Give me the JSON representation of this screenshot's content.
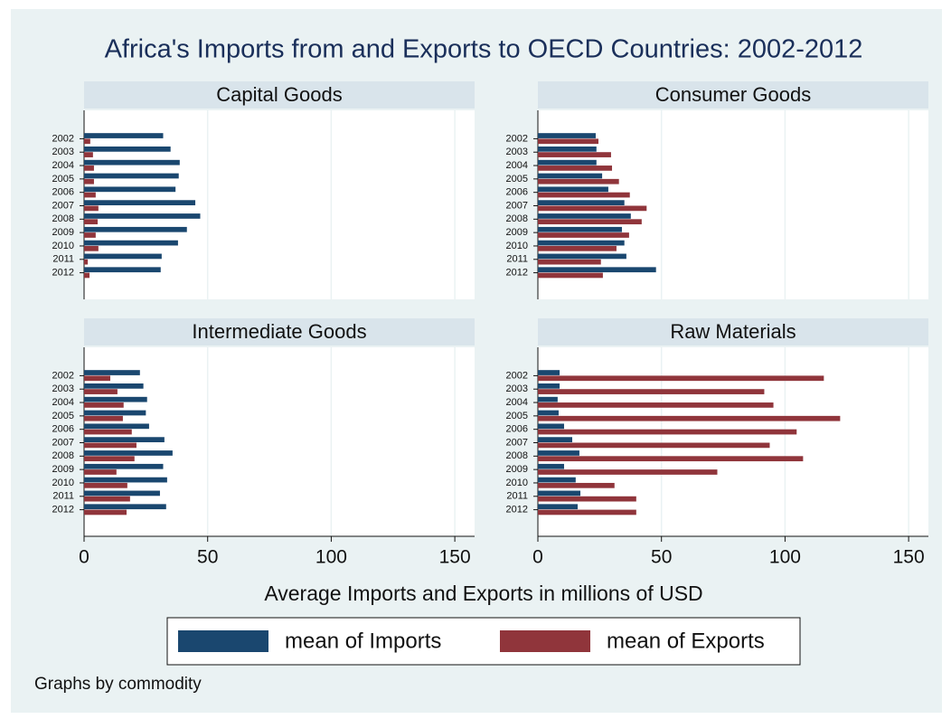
{
  "title": "Africa's Imports from and Exports to OECD Countries: 2002-2012",
  "xlabel": "Average Imports and Exports in millions of USD",
  "note": "Graphs by commodity",
  "chart_data": [
    {
      "type": "bar",
      "orientation": "horizontal",
      "title": "Capital Goods",
      "categories": [
        "2002",
        "2003",
        "2004",
        "2005",
        "2006",
        "2007",
        "2008",
        "2009",
        "2010",
        "2011",
        "2012"
      ],
      "series": [
        {
          "name": "mean of Imports",
          "color": "#1a476f",
          "values": [
            32,
            35,
            38.7,
            38.3,
            37,
            45,
            47,
            41.6,
            38,
            31.4,
            31
          ]
        },
        {
          "name": "mean of Exports",
          "color": "#90353b",
          "values": [
            2.5,
            3.6,
            4,
            4,
            4.7,
            5.8,
            5.5,
            4.7,
            5.8,
            1.5,
            2.2
          ]
        }
      ],
      "xlim": [
        0,
        158
      ],
      "xticks": [
        0,
        50,
        100,
        150
      ],
      "grid": true
    },
    {
      "type": "bar",
      "orientation": "horizontal",
      "title": "Consumer Goods",
      "categories": [
        "2002",
        "2003",
        "2004",
        "2005",
        "2006",
        "2007",
        "2008",
        "2009",
        "2010",
        "2011",
        "2012"
      ],
      "series": [
        {
          "name": "mean of Imports",
          "color": "#1a476f",
          "values": [
            23.4,
            23.7,
            23.7,
            26,
            28.5,
            35,
            37.6,
            34,
            35,
            35.8,
            47.8
          ]
        },
        {
          "name": "mean of Exports",
          "color": "#90353b",
          "values": [
            24.5,
            29.6,
            30,
            32.8,
            37.2,
            44,
            42,
            36.9,
            31.8,
            25.5,
            26.3
          ]
        }
      ],
      "xlim": [
        0,
        158
      ],
      "xticks": [
        0,
        50,
        100,
        150
      ],
      "grid": true
    },
    {
      "type": "bar",
      "orientation": "horizontal",
      "title": "Intermediate Goods",
      "categories": [
        "2002",
        "2003",
        "2004",
        "2005",
        "2006",
        "2007",
        "2008",
        "2009",
        "2010",
        "2011",
        "2012"
      ],
      "series": [
        {
          "name": "mean of Imports",
          "color": "#1a476f",
          "values": [
            22.6,
            24,
            25.5,
            25,
            26.3,
            32.5,
            35.8,
            32,
            33.6,
            30.7,
            33.2
          ]
        },
        {
          "name": "mean of Exports",
          "color": "#90353b",
          "values": [
            10.6,
            13.5,
            16,
            15.7,
            19.3,
            21.2,
            20.4,
            13.1,
            17.5,
            18.6,
            17.2
          ]
        }
      ],
      "xlim": [
        0,
        158
      ],
      "xticks": [
        0,
        50,
        100,
        150
      ],
      "grid": true
    },
    {
      "type": "bar",
      "orientation": "horizontal",
      "title": "Raw Materials",
      "categories": [
        "2002",
        "2003",
        "2004",
        "2005",
        "2006",
        "2007",
        "2008",
        "2009",
        "2010",
        "2011",
        "2012"
      ],
      "series": [
        {
          "name": "mean of Imports",
          "color": "#1a476f",
          "values": [
            8.8,
            8.8,
            8,
            8.4,
            10.6,
            13.9,
            16.8,
            10.6,
            15.3,
            17.2,
            16.1
          ]
        },
        {
          "name": "mean of Exports",
          "color": "#90353b",
          "values": [
            115.7,
            91.6,
            95.3,
            122.3,
            104.7,
            93.8,
            107.3,
            72.6,
            31,
            39.8,
            39.8
          ]
        }
      ],
      "xlim": [
        0,
        158
      ],
      "xticks": [
        0,
        50,
        100,
        150
      ],
      "grid": true
    }
  ]
}
